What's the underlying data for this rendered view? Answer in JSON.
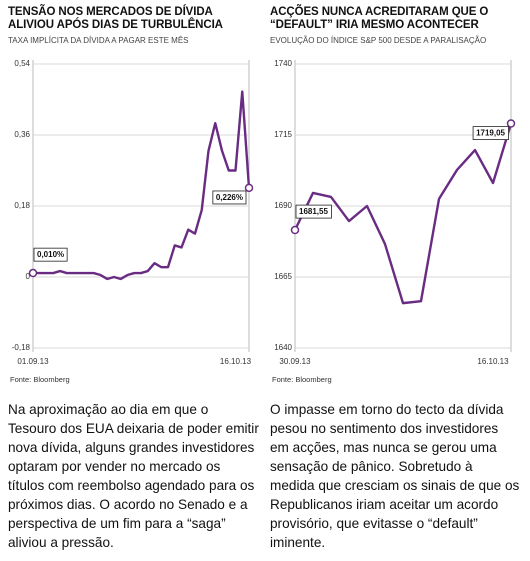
{
  "chart_data": [
    {
      "type": "line",
      "title": "TENSÃO NOS MERCADOS DE DÍVIDA ALIVIOU APÓS DIAS DE TURBULÊNCIA",
      "subtitle": "TAXA IMPLÍCITA DA DÍVIDA A PAGAR ESTE MÊS",
      "source": "Fonte: Bloomberg",
      "categories": [
        "01.09.13",
        null,
        null,
        null,
        null,
        null,
        null,
        null,
        null,
        null,
        null,
        null,
        null,
        null,
        null,
        null,
        null,
        null,
        null,
        null,
        null,
        null,
        null,
        null,
        null,
        null,
        null,
        null,
        null,
        null,
        "16.10.13",
        null,
        null
      ],
      "series": [
        {
          "color": "#6a2c83",
          "values": [
            0.01,
            0.01,
            0.01,
            0.01,
            0.015,
            0.01,
            0.01,
            0.01,
            0.01,
            0.01,
            0.005,
            -0.005,
            0.0,
            -0.005,
            0.005,
            0.01,
            0.01,
            0.015,
            0.035,
            0.025,
            0.025,
            0.08,
            0.075,
            0.12,
            0.11,
            0.17,
            0.32,
            0.39,
            0.32,
            0.27,
            0.27,
            0.47,
            0.226
          ],
          "value_labels": [
            "0,010%",
            null,
            null,
            null,
            null,
            null,
            null,
            null,
            null,
            null,
            null,
            null,
            null,
            null,
            null,
            null,
            null,
            null,
            null,
            null,
            null,
            null,
            null,
            null,
            null,
            null,
            null,
            null,
            null,
            null,
            null,
            null,
            "0,226%"
          ]
        }
      ],
      "ylim": [
        -0.18,
        0.54
      ],
      "yticks": [
        {
          "value": -0.18,
          "label": "-0,18"
        },
        0,
        {
          "value": 0.18,
          "label": "0,18"
        },
        {
          "value": 0.36,
          "label": "0,36"
        },
        {
          "value": 0.54,
          "label": "0,54"
        }
      ],
      "grid": true
    },
    {
      "type": "line",
      "title": "ACÇÕES NUNCA ACREDITARAM QUE O “DEFAULT” IRIA MESMO ACONTECER",
      "subtitle": "EVOLUÇÃO DO ÍNDICE S&P 500 DESDE A PARALISAÇÃO",
      "source": "Fonte: Bloomberg",
      "categories": [
        "30.09.13",
        null,
        null,
        null,
        null,
        null,
        null,
        null,
        null,
        null,
        null,
        "16.10.13",
        null
      ],
      "series": [
        {
          "color": "#6a2c83",
          "values": [
            1681.55,
            1694.6,
            1693.2,
            1684.7,
            1690,
            1676.6,
            1655.8,
            1656.5,
            1692.5,
            1702.7,
            1709.7,
            1698.1,
            1719.05
          ],
          "value_labels": [
            "1681,55",
            null,
            null,
            null,
            null,
            null,
            null,
            null,
            null,
            null,
            null,
            null,
            "1719,05"
          ]
        }
      ],
      "ylim": [
        1640,
        1740
      ],
      "yticks": [
        1640,
        1665,
        1690,
        1715,
        1740
      ],
      "grid": true
    }
  ],
  "body": [
    "Na aproximação ao dia em que o Tesouro dos EUA deixaria de poder emitir nova dívida, alguns grandes investidores optaram por vender no mercado os títulos com reembolso agendado para os próximos dias. O acordo no Senado e a perspectiva de um fim para a “saga” aliviou a pressão.",
    "O impasse em torno do tecto da dívida pesou no sentimento dos investidores em acções, mas nunca se gerou uma sensação de pânico. Sobretudo à medida que cresciam os sinais de que os Republicanos iriam aceitar um acordo provisório, que evitasse o “default” iminente."
  ]
}
